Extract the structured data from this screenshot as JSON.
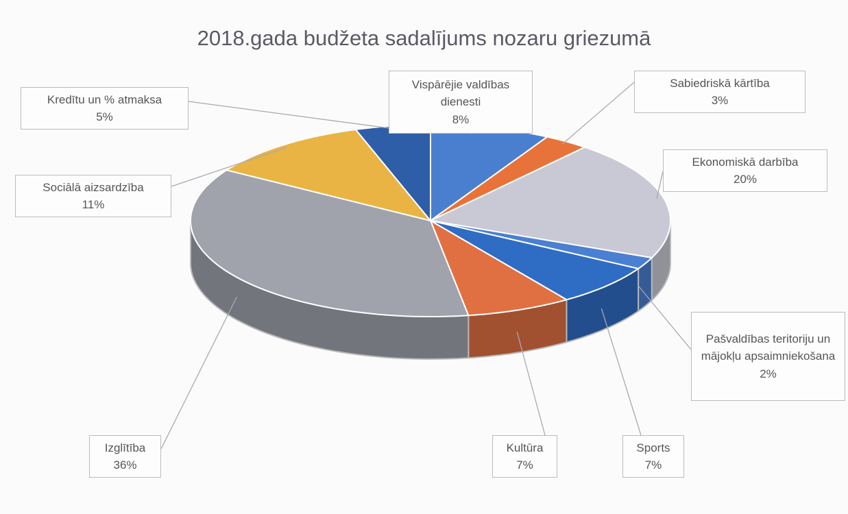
{
  "chart_data": {
    "type": "pie",
    "title": "2018.gada budžeta sadalījums nozaru griezumā",
    "categories": [
      "Vispārējie valdības dienesti",
      "Sabiedriskā kārtība",
      "Ekonomiskā darbība",
      "Pašvaldības teritoriju un mājokļu apsaimniekošana",
      "Sports",
      "Kultūra",
      "Izglītība",
      "Sociālā aizsardzība",
      "Kredītu un % atmaksa"
    ],
    "values": [
      8,
      3,
      20,
      2,
      7,
      7,
      36,
      11,
      5
    ],
    "value_labels": [
      "8%",
      "3%",
      "20%",
      "2%",
      "7%",
      "7%",
      "36%",
      "11%",
      "5%"
    ],
    "colors": [
      "#4a7fd0",
      "#e8733a",
      "#c9c9d6",
      "#4a80d2",
      "#2f6cc4",
      "#e07042",
      "#a0a2ac",
      "#e9b444",
      "#2f5ea8"
    ]
  }
}
